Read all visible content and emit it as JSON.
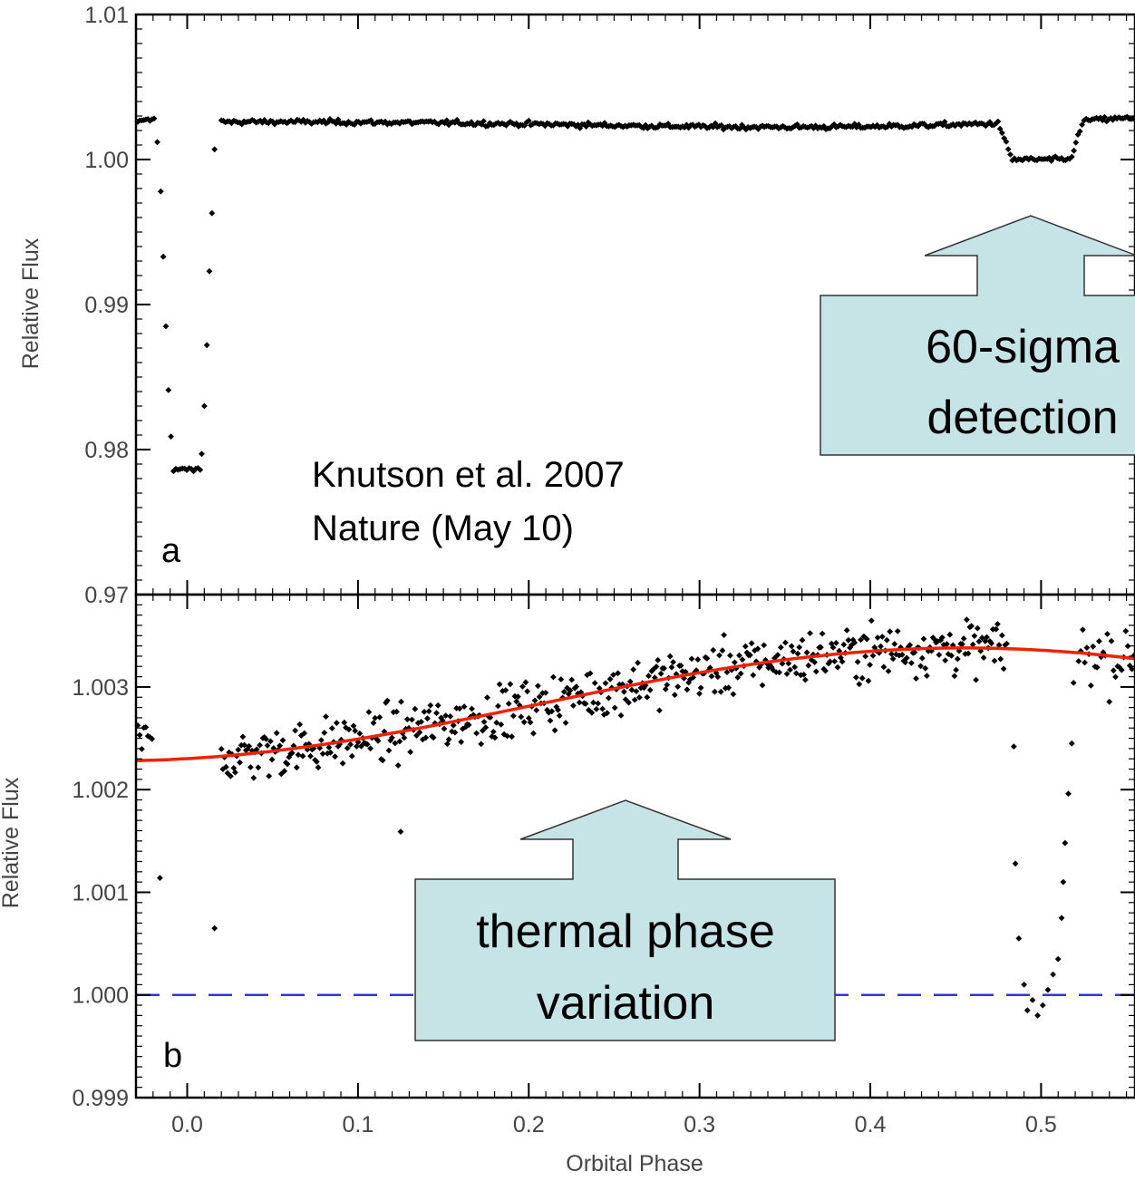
{
  "chart_data": [
    {
      "panel": "a",
      "type": "scatter",
      "xlabel": "",
      "ylabel": "Relative Flux",
      "xlim": [
        -0.03,
        0.555
      ],
      "ylim": [
        0.97,
        1.01
      ],
      "yticks": [
        "0.97",
        "0.98",
        "0.99",
        "1.00",
        "1.01"
      ],
      "ytick_values": [
        0.97,
        0.98,
        0.99,
        1.0,
        1.01
      ],
      "series": [
        {
          "marker_color": "#000000",
          "transit_points": [
            {
              "x": -0.0175,
              "y": 1.0012
            },
            {
              "x": -0.0155,
              "y": 0.9978
            },
            {
              "x": -0.014,
              "y": 0.9933
            },
            {
              "x": -0.0125,
              "y": 0.9885
            },
            {
              "x": -0.011,
              "y": 0.9841
            },
            {
              "x": -0.0095,
              "y": 0.9809
            },
            {
              "x": 0.0085,
              "y": 0.9797
            },
            {
              "x": 0.01,
              "y": 0.983
            },
            {
              "x": 0.0115,
              "y": 0.9872
            },
            {
              "x": 0.013,
              "y": 0.9923
            },
            {
              "x": 0.0145,
              "y": 0.9963
            },
            {
              "x": 0.016,
              "y": 1.0007
            }
          ]
        }
      ],
      "annotations": [
        {
          "text": "a",
          "role": "panel-letter"
        },
        {
          "text": "Knutson et al. 2007",
          "role": "citation"
        },
        {
          "text": "Nature (May 10)",
          "role": "citation"
        },
        {
          "lines": [
            "60-sigma",
            "detection"
          ],
          "role": "callout",
          "fill": "#c6e4e6"
        }
      ]
    },
    {
      "panel": "b",
      "type": "scatter",
      "xlabel": "Orbital Phase",
      "ylabel": "Relative Flux",
      "xlim": [
        -0.03,
        0.555
      ],
      "ylim": [
        0.999,
        1.0039
      ],
      "xticks": [
        "0.0",
        "0.1",
        "0.2",
        "0.3",
        "0.4",
        "0.5"
      ],
      "xtick_values": [
        0.0,
        0.1,
        0.2,
        0.3,
        0.4,
        0.5
      ],
      "yticks": [
        "0.999",
        "1.000",
        "1.001",
        "1.002",
        "1.003"
      ],
      "ytick_values": [
        0.999,
        1.0,
        1.001,
        1.002,
        1.003
      ],
      "fit_curve": {
        "color": "#ee2200",
        "model": "baseline",
        "baseline": 1.00283,
        "amplitude": 0.00055,
        "phase_of_max": 0.455
      },
      "reference_line": {
        "y": 1.0,
        "color": "#3333dd",
        "style": "dashed"
      },
      "series": [
        {
          "marker_color": "#000000",
          "outliers": [
            {
              "x": -0.016,
              "y": 1.00114
            },
            {
              "x": 0.016,
              "y": 1.00065
            },
            {
              "x": 0.125,
              "y": 1.00159
            }
          ],
          "eclipse_points": [
            {
              "x": 0.484,
              "y": 1.00242
            },
            {
              "x": 0.485,
              "y": 1.00128
            },
            {
              "x": 0.487,
              "y": 1.00055
            },
            {
              "x": 0.49,
              "y": 1.0001
            },
            {
              "x": 0.492,
              "y": 0.99985
            },
            {
              "x": 0.495,
              "y": 0.99995
            },
            {
              "x": 0.498,
              "y": 0.9998
            },
            {
              "x": 0.501,
              "y": 0.9999
            },
            {
              "x": 0.504,
              "y": 1.00005
            },
            {
              "x": 0.507,
              "y": 1.0002
            },
            {
              "x": 0.51,
              "y": 1.00035
            },
            {
              "x": 0.512,
              "y": 1.00075
            },
            {
              "x": 0.513,
              "y": 1.0011
            },
            {
              "x": 0.514,
              "y": 1.00148
            },
            {
              "x": 0.516,
              "y": 1.00196
            },
            {
              "x": 0.518,
              "y": 1.00245
            },
            {
              "x": 0.519,
              "y": 1.00304
            }
          ]
        }
      ],
      "annotations": [
        {
          "text": "b",
          "role": "panel-letter"
        },
        {
          "lines": [
            "thermal phase",
            "variation"
          ],
          "role": "callout",
          "fill": "#c6e4e6"
        }
      ]
    }
  ]
}
